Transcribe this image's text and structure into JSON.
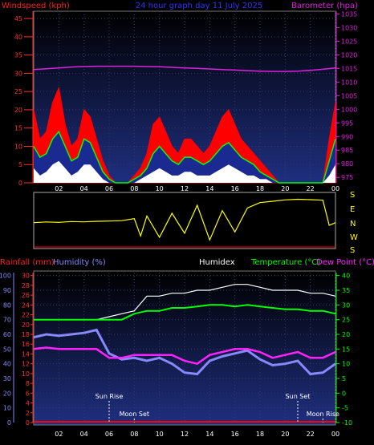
{
  "header": {
    "windspeed_label": "Windspeed (kph)",
    "title": "24 hour graph day 11 July 2025",
    "barometer_label": "Barometer (hpa)"
  },
  "lower_header": {
    "rainfall_label": "Rainfall (mm)",
    "humidity_label": "Humidity (%)",
    "humidex_label": "Humidex",
    "temperature_label": "Temperature (°C)",
    "dewpoint_label": "Dew Point (°C)"
  },
  "direction_labels": [
    "S",
    "E",
    "N",
    "W",
    "S"
  ],
  "annotations": {
    "sun_rise": "Sun Rise",
    "moon_set": "Moon Set",
    "sun_set": "Sun Set",
    "moon_rise": "Moon Rise"
  },
  "colors": {
    "windspeed": "#ff0000",
    "barometer": "#dd22dd",
    "wind_direction": "#ffff00",
    "humidity": "#8888ff",
    "humidex": "#ffffff",
    "temperature": "#00ff00",
    "dewpoint": "#ff22ff",
    "rainfall": "#ff0000"
  },
  "chart_data": [
    {
      "type": "line",
      "name": "wind-barometer",
      "x_ticks": [
        "02",
        "04",
        "06",
        "08",
        "10",
        "12",
        "14",
        "16",
        "18",
        "20",
        "22",
        "00"
      ],
      "y_left_ticks": [
        0,
        5,
        10,
        15,
        20,
        25,
        30,
        35,
        40,
        45
      ],
      "y_right_ticks": [
        975,
        980,
        985,
        990,
        995,
        1000,
        1005,
        1010,
        1015,
        1020,
        1025,
        1030,
        1035
      ],
      "y_left_range": [
        0,
        47
      ],
      "y_right_range": [
        973,
        1036
      ],
      "windspeed_x": [
        0,
        0.5,
        1,
        1.5,
        2,
        2.5,
        3,
        3.5,
        4,
        4.5,
        5,
        5.5,
        6,
        6.5,
        7,
        7.5,
        8,
        8.5,
        9,
        9.5,
        10,
        10.5,
        11,
        11.5,
        12,
        12.5,
        13,
        13.5,
        14,
        14.5,
        15,
        15.5,
        16,
        16.5,
        17,
        17.5,
        18,
        18.5,
        19,
        19.5,
        20,
        20.5,
        21,
        21.5,
        22,
        22.5,
        23,
        23.5,
        24
      ],
      "windspeed_gust": [
        20,
        12,
        14,
        22,
        26,
        16,
        10,
        12,
        20,
        18,
        12,
        6,
        2,
        0,
        0,
        0,
        2,
        4,
        8,
        16,
        18,
        14,
        10,
        8,
        12,
        12,
        10,
        8,
        10,
        14,
        18,
        20,
        16,
        12,
        10,
        8,
        6,
        4,
        2,
        0,
        0,
        0,
        0,
        0,
        0,
        0,
        0,
        12,
        22
      ],
      "windspeed_avg": [
        10,
        7,
        8,
        12,
        14,
        10,
        6,
        7,
        12,
        11,
        7,
        3,
        1,
        0,
        0,
        0,
        1,
        2,
        4,
        8,
        10,
        8,
        6,
        5,
        7,
        7,
        6,
        5,
        6,
        8,
        10,
        11,
        9,
        7,
        6,
        5,
        3,
        2,
        1,
        0,
        0,
        0,
        0,
        0,
        0,
        0,
        0,
        6,
        12
      ],
      "windspeed_min": [
        4,
        2,
        3,
        5,
        6,
        4,
        2,
        3,
        5,
        5,
        3,
        1,
        0,
        0,
        0,
        0,
        0,
        1,
        2,
        3,
        4,
        3,
        2,
        2,
        3,
        3,
        2,
        2,
        2,
        3,
        4,
        5,
        4,
        3,
        2,
        2,
        1,
        1,
        0,
        0,
        0,
        0,
        0,
        0,
        0,
        0,
        0,
        2,
        5
      ],
      "barometer_x": [
        0,
        1,
        2,
        3,
        4,
        5,
        6,
        7,
        8,
        9,
        10,
        11,
        12,
        13,
        14,
        15,
        16,
        17,
        18,
        19,
        20,
        21,
        22,
        23,
        24
      ],
      "barometer": [
        1014.6,
        1014.9,
        1015.2,
        1015.5,
        1015.7,
        1015.8,
        1015.8,
        1015.8,
        1015.8,
        1015.7,
        1015.6,
        1015.4,
        1015.2,
        1015.0,
        1014.8,
        1014.6,
        1014.4,
        1014.2,
        1014.0,
        1013.9,
        1013.9,
        1014.0,
        1014.3,
        1014.7,
        1015.2
      ]
    },
    {
      "type": "line",
      "name": "wind-direction",
      "labels": [
        "S",
        "E",
        "N",
        "W",
        "S"
      ],
      "x": [
        0,
        1,
        2,
        3,
        4,
        5,
        6,
        7,
        8,
        8.5,
        9,
        10,
        11,
        12,
        13,
        14,
        15,
        16,
        17,
        18,
        19,
        20,
        21,
        22,
        23,
        23.5,
        24
      ],
      "direction_deg": [
        170,
        175,
        172,
        178,
        176,
        180,
        182,
        185,
        200,
        70,
        220,
        60,
        240,
        90,
        300,
        40,
        260,
        100,
        280,
        320,
        330,
        340,
        345,
        342,
        338,
        150,
        170
      ]
    },
    {
      "type": "line",
      "name": "temperature-humidity",
      "x_ticks": [
        "02",
        "04",
        "06",
        "08",
        "10",
        "12",
        "14",
        "16",
        "18",
        "20",
        "22",
        "00"
      ],
      "y_humidity_ticks": [
        0,
        10,
        20,
        30,
        40,
        50,
        60,
        70,
        80,
        90,
        100
      ],
      "y_rain_ticks": [
        0,
        2,
        4,
        6,
        8,
        10,
        12,
        14,
        16,
        18,
        20,
        22,
        24,
        26,
        28,
        30
      ],
      "y_temp_ticks": [
        -10,
        -5,
        0,
        5,
        10,
        15,
        20,
        25,
        30,
        35,
        40
      ],
      "humidity_range": [
        0,
        102
      ],
      "temp_range": [
        -10,
        41
      ],
      "x": [
        0,
        1,
        2,
        3,
        4,
        5,
        6,
        7,
        8,
        9,
        10,
        11,
        12,
        13,
        14,
        15,
        16,
        17,
        18,
        19,
        20,
        21,
        22,
        23,
        24
      ],
      "humidity": [
        58,
        60,
        59,
        60,
        61,
        63,
        47,
        43,
        44,
        42,
        44,
        40,
        34,
        33,
        42,
        45,
        47,
        49,
        43,
        39,
        40,
        42,
        33,
        34,
        40
      ],
      "humidex": [
        25,
        25,
        25,
        25,
        25,
        25,
        26,
        27,
        28,
        33,
        33,
        34,
        34,
        35,
        35,
        36,
        37,
        37,
        36,
        35,
        35,
        35,
        34,
        34,
        33
      ],
      "temperature": [
        25,
        25,
        25,
        25,
        25,
        25,
        25,
        25,
        27,
        28,
        28,
        29,
        29,
        29.5,
        30,
        30,
        29.5,
        30,
        29.5,
        29,
        28.5,
        28.5,
        28,
        28,
        27
      ],
      "dewpoint": [
        15,
        15.5,
        15,
        15,
        15,
        15,
        12,
        12,
        13,
        13,
        13,
        13,
        11,
        10,
        13,
        14,
        15,
        15,
        14,
        12,
        13,
        14,
        12,
        12,
        14
      ],
      "rainfall_total": 0,
      "annotations": [
        {
          "label": "Sun Rise",
          "x": 6
        },
        {
          "label": "Moon Set",
          "x": 8
        },
        {
          "label": "Sun Set",
          "x": 21
        },
        {
          "label": "Moon Rise",
          "x": 23
        }
      ]
    }
  ]
}
